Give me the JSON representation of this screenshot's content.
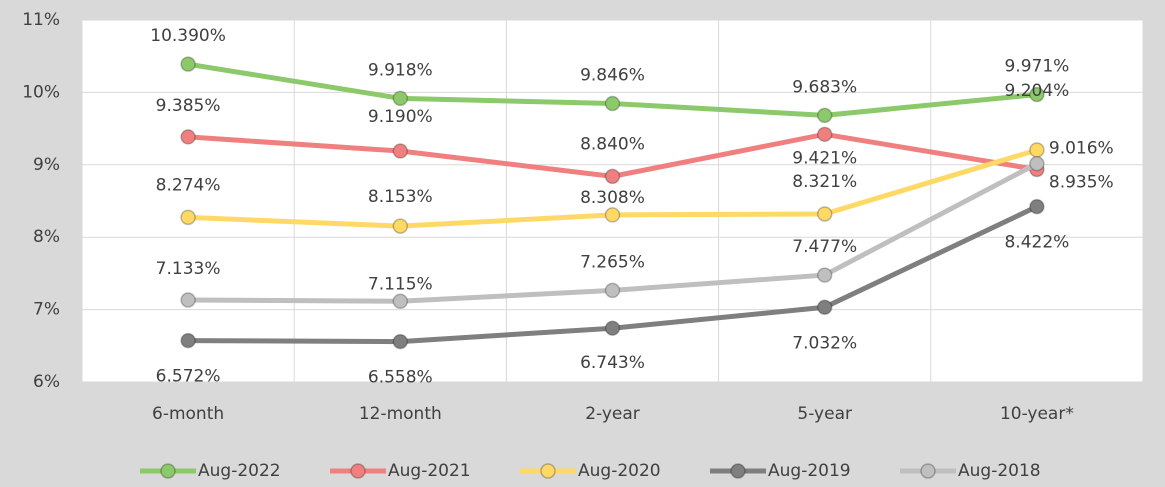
{
  "chart_data": {
    "type": "line",
    "categories": [
      "6-month",
      "12-month",
      "2-year",
      "5-year",
      "10-year*"
    ],
    "series": [
      {
        "name": "Aug-2022",
        "color": "#8cc96a",
        "values": [
          10.39,
          9.918,
          9.846,
          9.683,
          9.971
        ],
        "value_labels": [
          "10.390%",
          "9.918%",
          "9.846%",
          "9.683%",
          "9.971%"
        ]
      },
      {
        "name": "Aug-2021",
        "color": "#f08080",
        "values": [
          9.385,
          9.19,
          8.84,
          9.421,
          8.935
        ],
        "value_labels": [
          "9.385%",
          "9.190%",
          "8.840%",
          "9.421%",
          "8.935%"
        ]
      },
      {
        "name": "Aug-2020",
        "color": "#ffd966",
        "values": [
          8.274,
          8.153,
          8.308,
          8.321,
          9.204
        ],
        "value_labels": [
          "8.274%",
          "8.153%",
          "8.308%",
          "8.321%",
          "9.204%"
        ]
      },
      {
        "name": "Aug-2019",
        "color": "#7f7f7f",
        "values": [
          6.572,
          6.558,
          6.743,
          7.032,
          8.422
        ],
        "value_labels": [
          "6.572%",
          "6.558%",
          "6.743%",
          "7.032%",
          "8.422%"
        ]
      },
      {
        "name": "Aug-2018",
        "color": "#bfbfbf",
        "values": [
          7.133,
          7.115,
          7.265,
          7.477,
          9.016
        ],
        "value_labels": [
          "7.133%",
          "7.115%",
          "7.265%",
          "7.477%",
          "9.016%"
        ]
      }
    ],
    "ylim": [
      6,
      11
    ],
    "yticks": [
      {
        "value": 6,
        "label": "6%"
      },
      {
        "value": 7,
        "label": "7%"
      },
      {
        "value": 8,
        "label": "8%"
      },
      {
        "value": 9,
        "label": "9%"
      },
      {
        "value": 10,
        "label": "10%"
      },
      {
        "value": 11,
        "label": "11%"
      }
    ],
    "grid": true,
    "legend": "bottom"
  }
}
